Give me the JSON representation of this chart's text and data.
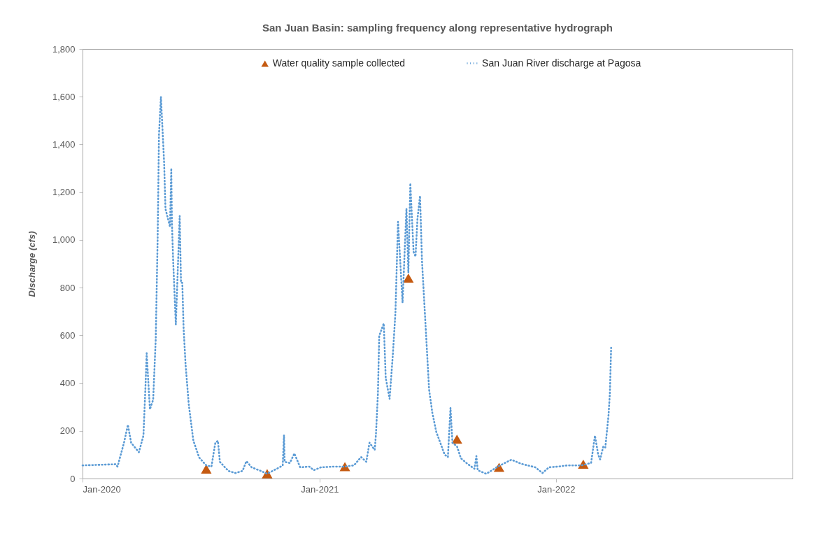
{
  "chart_data": {
    "type": "line",
    "title": "San Juan Basin: sampling frequency along representative hydrograph",
    "ylabel": "Discharge (cfs)",
    "xlim": [
      "2020-01-01",
      "2023-01-01"
    ],
    "xticks": [
      {
        "value": "2020-01-01",
        "label": "Jan-2020"
      },
      {
        "value": "2021-01-01",
        "label": "Jan-2021"
      },
      {
        "value": "2022-01-01",
        "label": "Jan-2022"
      }
    ],
    "ylim": [
      0,
      1800
    ],
    "yticks": [
      0,
      200,
      400,
      600,
      800,
      {
        "value": 1000,
        "label": "1,000"
      },
      {
        "value": 1200,
        "label": "1,200"
      },
      {
        "value": 1400,
        "label": "1,400"
      },
      {
        "value": 1600,
        "label": "1,600"
      },
      {
        "value": 1800,
        "label": "1,800"
      }
    ],
    "legend": "top",
    "series": [
      {
        "name": "Water quality sample collected",
        "type": "scatter",
        "marker": "triangle",
        "color": "#c55a11",
        "x": [
          "2020-07-10",
          "2020-10-12",
          "2021-02-09",
          "2021-05-18",
          "2021-08-01",
          "2021-10-05",
          "2022-02-12"
        ],
        "values": [
          40,
          20,
          50,
          840,
          165,
          47,
          60
        ]
      },
      {
        "name": "San Juan River discharge at Pagosa",
        "line_style": "dotted",
        "color": "#5b9bd5",
        "x": [
          "2020-01-01",
          "2020-02-21",
          "2020-02-24",
          "2020-03-05",
          "2020-03-11",
          "2020-03-16",
          "2020-03-28",
          "2020-04-04",
          "2020-04-07",
          "2020-04-09",
          "2020-04-14",
          "2020-04-19",
          "2020-04-23",
          "2020-04-26",
          "2020-04-28",
          "2020-05-01",
          "2020-05-06",
          "2020-05-08",
          "2020-05-15",
          "2020-05-17",
          "2020-05-18",
          "2020-05-20",
          "2020-05-24",
          "2020-05-30",
          "2020-06-01",
          "2020-06-03",
          "2020-06-05",
          "2020-06-08",
          "2020-06-13",
          "2020-06-20",
          "2020-06-29",
          "2020-07-10",
          "2020-07-18",
          "2020-07-24",
          "2020-07-28",
          "2020-07-31",
          "2020-08-13",
          "2020-08-24",
          "2020-09-04",
          "2020-09-10",
          "2020-09-18",
          "2020-10-02",
          "2020-10-12",
          "2020-10-31",
          "2020-11-05",
          "2020-11-07",
          "2020-11-08",
          "2020-11-16",
          "2020-11-23",
          "2020-12-02",
          "2020-12-16",
          "2020-12-23",
          "2021-01-03",
          "2021-01-22",
          "2021-02-08",
          "2021-02-23",
          "2021-03-06",
          "2021-03-14",
          "2021-03-19",
          "2021-03-27",
          "2021-03-29",
          "2021-04-01",
          "2021-04-03",
          "2021-04-10",
          "2021-04-13",
          "2021-04-19",
          "2021-04-24",
          "2021-04-28",
          "2021-05-02",
          "2021-05-09",
          "2021-05-15",
          "2021-05-18",
          "2021-05-21",
          "2021-05-26",
          "2021-05-29",
          "2021-06-01",
          "2021-06-05",
          "2021-06-08",
          "2021-06-14",
          "2021-06-19",
          "2021-06-24",
          "2021-06-30",
          "2021-07-13",
          "2021-07-18",
          "2021-07-22",
          "2021-07-25",
          "2021-08-01",
          "2021-08-07",
          "2021-08-17",
          "2021-08-28",
          "2021-08-31",
          "2021-09-02",
          "2021-09-15",
          "2021-09-19",
          "2021-10-03",
          "2021-10-24",
          "2021-11-08",
          "2021-11-30",
          "2021-12-11",
          "2021-12-21",
          "2022-01-04",
          "2022-01-18",
          "2022-02-09",
          "2022-02-24",
          "2022-03-02",
          "2022-03-07",
          "2022-03-10",
          "2022-03-15",
          "2022-03-18",
          "2022-03-23",
          "2022-03-25",
          "2022-03-27"
        ],
        "values": [
          55,
          60,
          50,
          150,
          225,
          150,
          110,
          180,
          375,
          525,
          290,
          330,
          585,
          1015,
          1440,
          1600,
          1320,
          1130,
          1055,
          1300,
          1070,
          905,
          645,
          1100,
          820,
          820,
          630,
          480,
          310,
          160,
          88,
          55,
          50,
          150,
          158,
          70,
          32,
          23,
          32,
          73,
          47,
          32,
          20,
          47,
          55,
          182,
          70,
          65,
          105,
          47,
          50,
          35,
          47,
          50,
          50,
          55,
          90,
          70,
          150,
          120,
          188,
          358,
          598,
          650,
          422,
          334,
          519,
          695,
          1076,
          736,
          1132,
          862,
          1237,
          950,
          930,
          1088,
          1185,
          912,
          618,
          372,
          275,
          196,
          100,
          90,
          296,
          150,
          135,
          85,
          62,
          41,
          94,
          35,
          20,
          26,
          50,
          79,
          62,
          47,
          23,
          47,
          50,
          55,
          55,
          65,
          180,
          100,
          80,
          135,
          130,
          267,
          355,
          548
        ]
      }
    ]
  }
}
